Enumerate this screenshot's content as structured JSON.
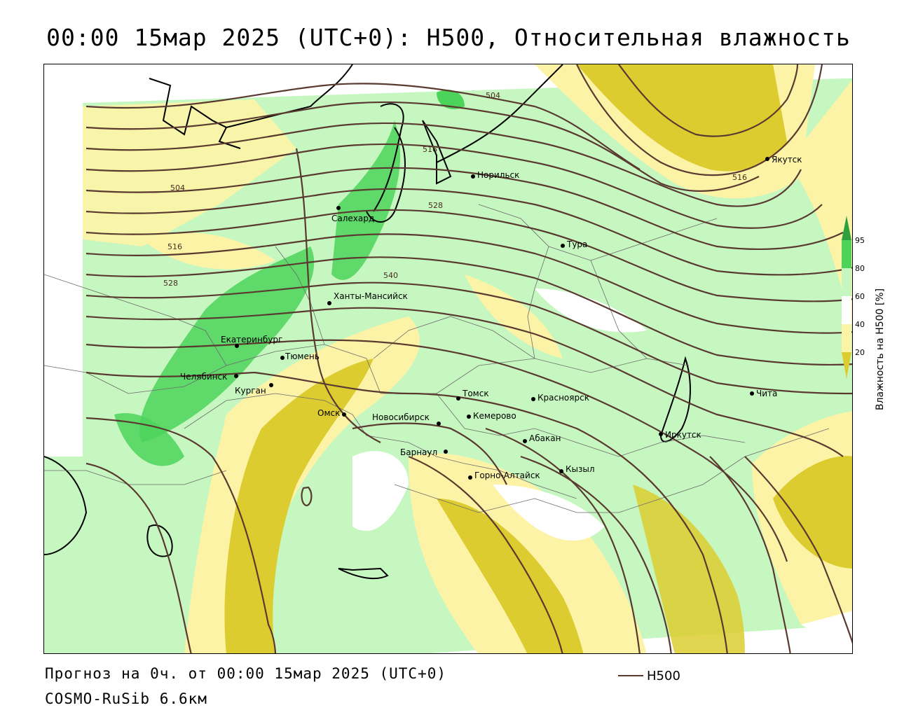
{
  "title": "00:00 15мар 2025 (UTC+0): H500, Относительная влажность",
  "footer": {
    "forecast": "Прогноз на 0ч. от 00:00 15мар 2025 (UTC+0)",
    "model": "COSMO-RuSib 6.6км",
    "line_legend": "H500"
  },
  "colorbar": {
    "title": "Влажность на H500 [%]",
    "ticks": [
      "95",
      "80",
      "60",
      "40",
      "20"
    ],
    "colors": {
      "c95": "#2f9f3f",
      "c80": "#4cd45a",
      "c60": "#c6f7c0",
      "c40": "#ffffff",
      "c20": "#fdf3a6",
      "c0": "#dccc30"
    }
  },
  "contour_color": "#5a3a30",
  "contour_labels": [
    "504",
    "516",
    "528",
    "540",
    "504",
    "516",
    "528",
    "516"
  ],
  "cities": [
    "Норильск",
    "Якутск",
    "Салехард",
    "Тура",
    "Ханты-Мансийск",
    "Екатеринбург",
    "Тюмень",
    "Челябинск",
    "Курган",
    "Омск",
    "Новосибирск",
    "Томск",
    "Кемерово",
    "Красноярск",
    "Иркутск",
    "Чита",
    "Барнаул",
    "Абакан",
    "Горно-Алтайск",
    "Кызыл"
  ]
}
